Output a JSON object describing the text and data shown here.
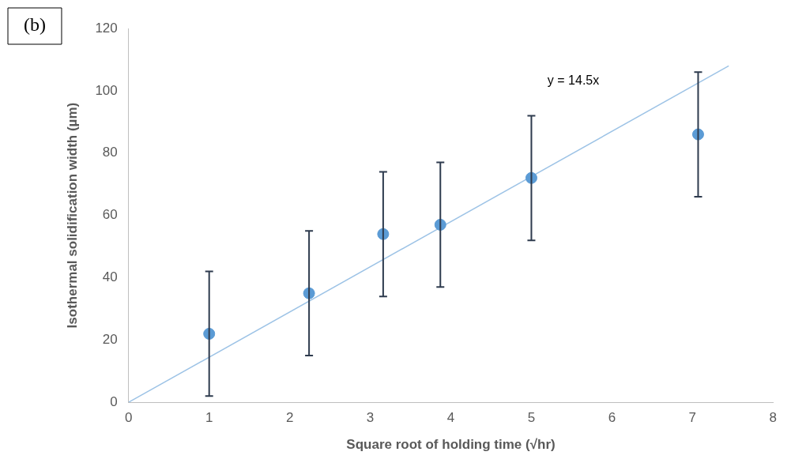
{
  "chart_data": {
    "type": "scatter",
    "xlabel": "Square root of holding time (√hr)",
    "ylabel": "Isothermal solidification width (µm)",
    "annotations": [
      "(b)",
      "y = 14.5x"
    ],
    "xlim": [
      0,
      8
    ],
    "xticks": [
      0,
      1,
      2,
      3,
      4,
      5,
      6,
      7,
      8
    ],
    "ylim": [
      0,
      120
    ],
    "yticks": [
      0,
      20,
      40,
      60,
      80,
      100,
      120
    ],
    "grid": false,
    "legend": false,
    "series": [
      {
        "color": "#5b9bd5",
        "marker": "circle",
        "x": [
          1,
          2.24,
          3.16,
          3.87,
          5,
          7.07
        ],
        "values": [
          22,
          35,
          54,
          57,
          72,
          86
        ],
        "errors": [
          20,
          20,
          20,
          20,
          20,
          20
        ]
      },
      {
        "type": "line",
        "color": "#9dc3e6",
        "marker": "none",
        "x": [
          0,
          7.45
        ],
        "values": [
          0,
          108
        ]
      }
    ]
  }
}
